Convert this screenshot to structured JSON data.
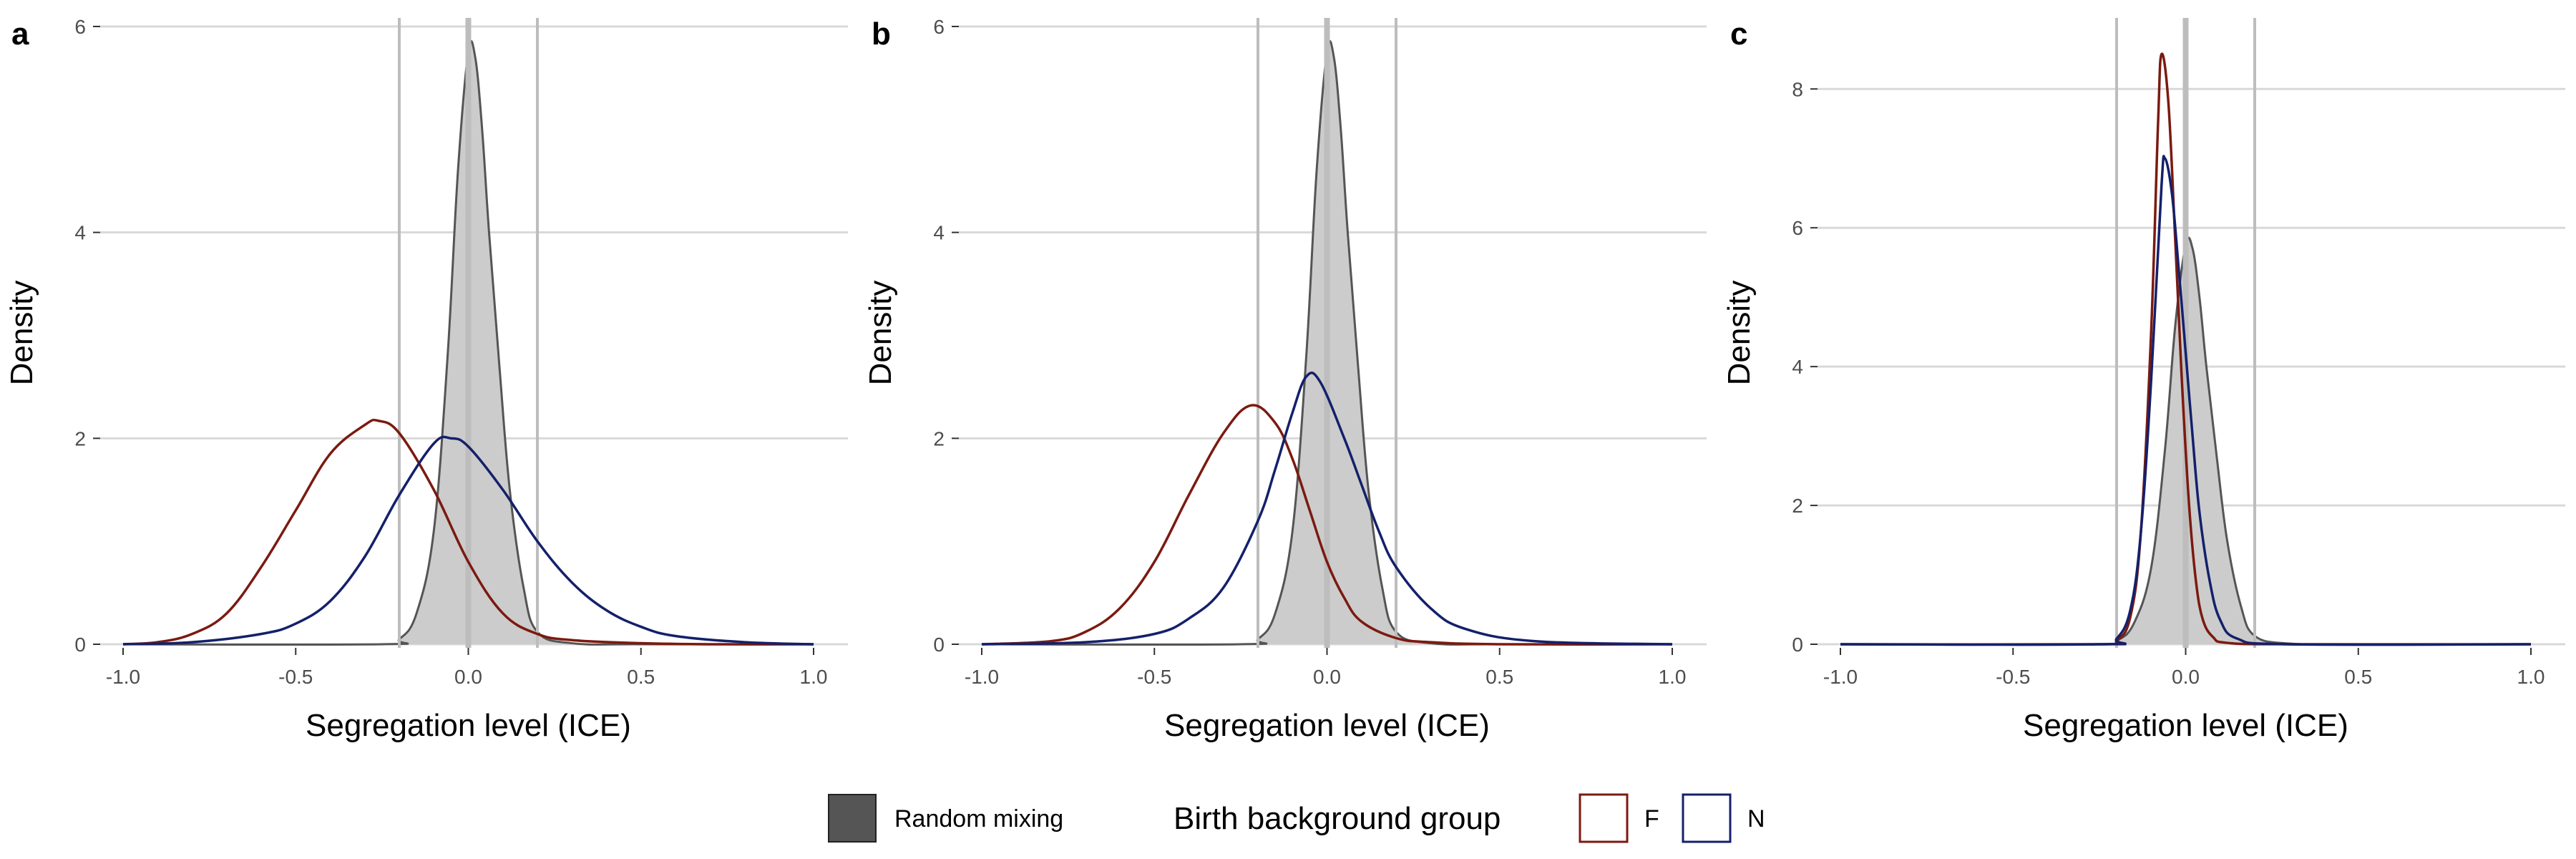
{
  "chart_data": [
    {
      "type": "area",
      "panel_tag": "a",
      "xlabel": "Segregation level (ICE)",
      "ylabel": "Density",
      "xlim": [
        -1.0,
        1.0
      ],
      "ylim": [
        0,
        6
      ],
      "x_ticks": [
        -1.0,
        -0.5,
        0.0,
        0.5,
        1.0
      ],
      "x_tick_labels": [
        "-1.0",
        "-0.5",
        "0.0",
        "0.5",
        "1.0"
      ],
      "y_ticks": [
        0,
        2,
        4,
        6
      ],
      "y_tick_labels": [
        "0",
        "2",
        "4",
        "6"
      ],
      "vlines": [
        -0.2,
        0.0,
        0.2
      ],
      "series": [
        {
          "name": "Random mixing",
          "kind": "area",
          "color": "#555555",
          "fill": "#cccccc",
          "x": [
            -1.0,
            -0.25,
            -0.2,
            -0.15,
            -0.1,
            -0.06,
            -0.03,
            0.0,
            0.02,
            0.04,
            0.06,
            0.09,
            0.12,
            0.16,
            0.2,
            0.3,
            0.5,
            1.0
          ],
          "y": [
            0,
            0,
            0.05,
            0.3,
            1.1,
            2.8,
            4.6,
            5.75,
            5.7,
            5.0,
            4.0,
            2.7,
            1.5,
            0.55,
            0.12,
            0.01,
            0,
            0
          ]
        },
        {
          "name": "F",
          "kind": "line",
          "color": "#7b1a10",
          "x": [
            -1.0,
            -0.9,
            -0.8,
            -0.7,
            -0.6,
            -0.5,
            -0.4,
            -0.3,
            -0.26,
            -0.2,
            -0.1,
            0.0,
            0.1,
            0.2,
            0.3,
            0.5,
            0.7,
            1.0
          ],
          "y": [
            0,
            0.02,
            0.1,
            0.3,
            0.75,
            1.3,
            1.85,
            2.13,
            2.17,
            2.05,
            1.5,
            0.8,
            0.3,
            0.1,
            0.04,
            0.01,
            0,
            0
          ]
        },
        {
          "name": "N",
          "kind": "line",
          "color": "#14206b",
          "x": [
            -1.0,
            -0.8,
            -0.6,
            -0.5,
            -0.4,
            -0.3,
            -0.2,
            -0.1,
            -0.05,
            0.0,
            0.1,
            0.2,
            0.3,
            0.4,
            0.5,
            0.6,
            0.8,
            1.0
          ],
          "y": [
            0,
            0.02,
            0.1,
            0.2,
            0.42,
            0.85,
            1.45,
            1.95,
            2.0,
            1.92,
            1.5,
            1.0,
            0.6,
            0.33,
            0.17,
            0.08,
            0.02,
            0
          ]
        }
      ]
    },
    {
      "type": "area",
      "panel_tag": "b",
      "xlabel": "Segregation level (ICE)",
      "ylabel": "Density",
      "xlim": [
        -1.0,
        1.0
      ],
      "ylim": [
        0,
        6
      ],
      "x_ticks": [
        -1.0,
        -0.5,
        0.0,
        0.5,
        1.0
      ],
      "x_tick_labels": [
        "-1.0",
        "-0.5",
        "0.0",
        "0.5",
        "1.0"
      ],
      "y_ticks": [
        0,
        2,
        4,
        6
      ],
      "y_tick_labels": [
        "0",
        "2",
        "4",
        "6"
      ],
      "vlines": [
        -0.2,
        0.0,
        0.2
      ],
      "series": [
        {
          "name": "Random mixing",
          "kind": "area",
          "color": "#555555",
          "fill": "#cccccc",
          "x": [
            -1.0,
            -0.25,
            -0.2,
            -0.15,
            -0.1,
            -0.06,
            -0.03,
            0.0,
            0.02,
            0.04,
            0.06,
            0.09,
            0.12,
            0.16,
            0.2,
            0.3,
            0.5,
            1.0
          ],
          "y": [
            0,
            0,
            0.05,
            0.3,
            1.1,
            2.8,
            4.6,
            5.75,
            5.7,
            5.0,
            4.0,
            2.7,
            1.5,
            0.55,
            0.12,
            0.01,
            0,
            0
          ]
        },
        {
          "name": "F",
          "kind": "line",
          "color": "#7b1a10",
          "x": [
            -1.0,
            -0.8,
            -0.7,
            -0.6,
            -0.5,
            -0.4,
            -0.3,
            -0.22,
            -0.15,
            -0.1,
            -0.05,
            0.0,
            0.05,
            0.1,
            0.2,
            0.3,
            0.5,
            1.0
          ],
          "y": [
            0,
            0.03,
            0.12,
            0.35,
            0.8,
            1.45,
            2.05,
            2.32,
            2.15,
            1.8,
            1.3,
            0.8,
            0.45,
            0.22,
            0.06,
            0.02,
            0,
            0
          ]
        },
        {
          "name": "N",
          "kind": "line",
          "color": "#14206b",
          "x": [
            -1.0,
            -0.7,
            -0.5,
            -0.4,
            -0.3,
            -0.2,
            -0.15,
            -0.1,
            -0.06,
            -0.02,
            0.05,
            0.1,
            0.15,
            0.2,
            0.3,
            0.4,
            0.6,
            1.0
          ],
          "y": [
            0,
            0.02,
            0.1,
            0.25,
            0.55,
            1.2,
            1.7,
            2.25,
            2.6,
            2.55,
            2.0,
            1.55,
            1.1,
            0.75,
            0.35,
            0.15,
            0.03,
            0
          ]
        }
      ]
    },
    {
      "type": "area",
      "panel_tag": "c",
      "xlabel": "Segregation level (ICE)",
      "ylabel": "Density",
      "xlim": [
        -1.0,
        1.0
      ],
      "ylim": [
        0,
        8
      ],
      "x_ticks": [
        -1.0,
        -0.5,
        0.0,
        0.5,
        1.0
      ],
      "x_tick_labels": [
        "-1.0",
        "-0.5",
        "0.0",
        "0.5",
        "1.0"
      ],
      "y_ticks": [
        0,
        2,
        4,
        6,
        8
      ],
      "y_tick_labels": [
        "0",
        "2",
        "4",
        "6",
        "8"
      ],
      "vlines": [
        -0.2,
        0.0,
        0.2
      ],
      "series": [
        {
          "name": "Random mixing",
          "kind": "area",
          "color": "#555555",
          "fill": "#cccccc",
          "x": [
            -1.0,
            -0.25,
            -0.2,
            -0.15,
            -0.1,
            -0.06,
            -0.03,
            0.0,
            0.02,
            0.04,
            0.06,
            0.09,
            0.12,
            0.16,
            0.2,
            0.3,
            0.5,
            1.0
          ],
          "y": [
            0,
            0,
            0.05,
            0.3,
            1.1,
            2.8,
            4.6,
            5.75,
            5.7,
            5.0,
            4.0,
            2.7,
            1.5,
            0.55,
            0.12,
            0.01,
            0,
            0
          ]
        },
        {
          "name": "F",
          "kind": "line",
          "color": "#7b1a10",
          "x": [
            -1.0,
            -0.25,
            -0.2,
            -0.16,
            -0.13,
            -0.1,
            -0.08,
            -0.07,
            -0.05,
            -0.03,
            -0.01,
            0.01,
            0.03,
            0.05,
            0.08,
            0.12,
            0.3,
            1.0
          ],
          "y": [
            0,
            0,
            0.05,
            0.4,
            1.6,
            4.5,
            7.5,
            8.5,
            7.8,
            5.8,
            3.7,
            2.0,
            0.9,
            0.35,
            0.1,
            0.02,
            0,
            0
          ]
        },
        {
          "name": "N",
          "kind": "line",
          "color": "#14206b",
          "x": [
            -1.0,
            -0.25,
            -0.2,
            -0.16,
            -0.13,
            -0.1,
            -0.07,
            -0.06,
            -0.04,
            -0.02,
            0.0,
            0.02,
            0.04,
            0.07,
            0.1,
            0.15,
            0.3,
            1.0
          ],
          "y": [
            0,
            0,
            0.08,
            0.5,
            1.6,
            3.8,
            6.6,
            7.0,
            6.5,
            5.4,
            4.2,
            3.0,
            1.9,
            0.9,
            0.35,
            0.08,
            0,
            0
          ]
        }
      ]
    }
  ],
  "legend": {
    "random_label": "Random mixing",
    "random_fill": "#555555",
    "group_title": "Birth background group",
    "items": [
      {
        "label": "F",
        "color": "#7b1a10"
      },
      {
        "label": "N",
        "color": "#14206b"
      }
    ]
  }
}
